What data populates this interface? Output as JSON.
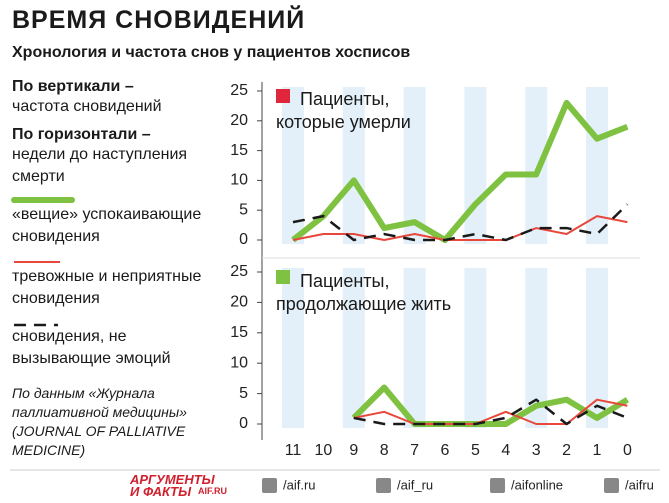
{
  "title": "ВРЕМЯ СНОВИДЕНИЙ",
  "subtitle": "Хронология и частота снов у пациентов хосписов",
  "axis_notes": [
    {
      "heading": "По вертикали –",
      "text": "частота сновидений"
    },
    {
      "heading": "По горизонтали –",
      "text": "недели до наступления смерти"
    }
  ],
  "source": "По данным «Журнала паллиативной медицины» (JOURNAL OF PALLIATIVE MEDICINE)",
  "chart_data": [
    {
      "type": "line",
      "title": "Пациенты, которые умерли",
      "title_color": "#e0263a",
      "ylim": [
        0,
        25
      ],
      "yticks": [
        0,
        5,
        10,
        15,
        20,
        25
      ],
      "series": [
        {
          "name": "«вещие» успокаивающие сновидения",
          "color": "#7fc241",
          "width": 6,
          "dashed": false,
          "values": [
            0,
            4,
            10,
            2,
            3,
            0,
            6,
            11,
            11,
            23,
            17,
            19
          ]
        },
        {
          "name": "тревожные и неприятные сновидения",
          "color": "#e8473c",
          "width": 2,
          "dashed": false,
          "values": [
            0,
            1,
            1,
            0,
            1,
            0,
            0,
            0,
            2,
            1,
            4,
            3
          ]
        },
        {
          "name": "сновидения, не вызывающие эмоций",
          "color": "#1a1a1a",
          "width": 2.5,
          "dashed": true,
          "values": [
            3,
            4,
            0,
            1,
            0,
            0,
            1,
            0,
            2,
            2,
            1,
            6
          ]
        }
      ]
    },
    {
      "type": "line",
      "title": "Пациенты, продолжающие жить",
      "title_color": "#7fc241",
      "ylim": [
        0,
        25
      ],
      "yticks": [
        0,
        5,
        10,
        15,
        20,
        25
      ],
      "categories": [
        "11",
        "10",
        "9",
        "8",
        "7",
        "6",
        "5",
        "4",
        "3",
        "2",
        "1",
        "0"
      ],
      "series": [
        {
          "color": "#7fc241",
          "width": 6,
          "dashed": false,
          "values": [
            null,
            null,
            1,
            6,
            0,
            0,
            0,
            0,
            3,
            4,
            1,
            4
          ]
        },
        {
          "color": "#e8473c",
          "width": 2,
          "dashed": false,
          "values": [
            null,
            null,
            1,
            2,
            0,
            0,
            0,
            2,
            0,
            0,
            4,
            3
          ]
        },
        {
          "color": "#1a1a1a",
          "width": 2.5,
          "dashed": true,
          "values": [
            null,
            null,
            1,
            0,
            0,
            0,
            0,
            1,
            4,
            0,
            3,
            1
          ]
        }
      ]
    }
  ],
  "footer": {
    "logo": "АРГУМЕНТЫ И ФАКТЫ",
    "logo_site": "AIF.RU",
    "social": [
      "/aif.ru",
      "/aif_ru",
      "/aifonline",
      "/aifru"
    ]
  }
}
